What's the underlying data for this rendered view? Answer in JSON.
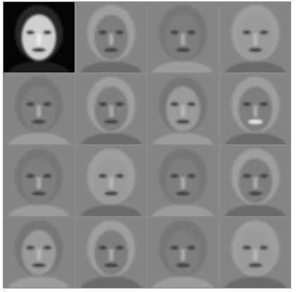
{
  "figure": {
    "description_visible_text": "",
    "grid": {
      "rows": 4,
      "cols": 4
    },
    "tiles": [
      {
        "id": "mean-face",
        "variant": "dark"
      },
      {
        "id": "eigenface-1",
        "variant": "gray"
      },
      {
        "id": "eigenface-2",
        "variant": "gray"
      },
      {
        "id": "eigenface-3",
        "variant": "gray"
      },
      {
        "id": "eigenface-4",
        "variant": "gray"
      },
      {
        "id": "eigenface-5",
        "variant": "gray"
      },
      {
        "id": "eigenface-6",
        "variant": "gray"
      },
      {
        "id": "eigenface-7",
        "variant": "gray"
      },
      {
        "id": "eigenface-8",
        "variant": "gray"
      },
      {
        "id": "eigenface-9",
        "variant": "gray"
      },
      {
        "id": "eigenface-10",
        "variant": "gray"
      },
      {
        "id": "eigenface-11",
        "variant": "gray"
      },
      {
        "id": "eigenface-12",
        "variant": "gray"
      },
      {
        "id": "eigenface-13",
        "variant": "gray"
      },
      {
        "id": "eigenface-14",
        "variant": "gray"
      },
      {
        "id": "eigenface-15",
        "variant": "gray"
      }
    ]
  }
}
